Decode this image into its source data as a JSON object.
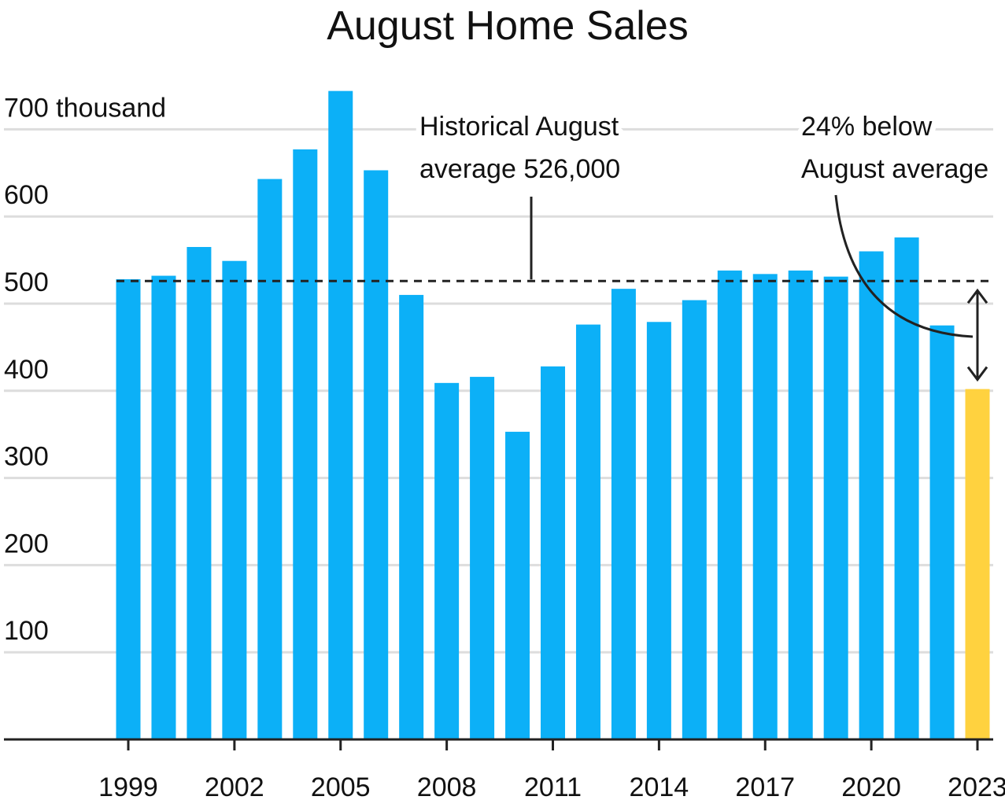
{
  "chart_data": {
    "type": "bar",
    "title": "August Home Sales",
    "categories": [
      "1999",
      null,
      null,
      "2002",
      null,
      null,
      "2005",
      null,
      null,
      "2008",
      null,
      null,
      "2011",
      null,
      null,
      "2014",
      null,
      null,
      "2017",
      null,
      null,
      "2020",
      null,
      null,
      "2023"
    ],
    "values": [
      528,
      532,
      565,
      549,
      643,
      677,
      744,
      653,
      510,
      409,
      416,
      353,
      428,
      476,
      517,
      479,
      504,
      538,
      534,
      538,
      531,
      560,
      576,
      475,
      402
    ],
    "colors": [
      "#0cb0f7",
      "#0cb0f7",
      "#0cb0f7",
      "#0cb0f7",
      "#0cb0f7",
      "#0cb0f7",
      "#0cb0f7",
      "#0cb0f7",
      "#0cb0f7",
      "#0cb0f7",
      "#0cb0f7",
      "#0cb0f7",
      "#0cb0f7",
      "#0cb0f7",
      "#0cb0f7",
      "#0cb0f7",
      "#0cb0f7",
      "#0cb0f7",
      "#0cb0f7",
      "#0cb0f7",
      "#0cb0f7",
      "#0cb0f7",
      "#0cb0f7",
      "#0cb0f7",
      "#ffd23f"
    ],
    "ylim": [
      0,
      750
    ],
    "yticks": [
      100,
      200,
      300,
      400,
      500,
      600,
      {
        "value": 700,
        "label": "700 thousand"
      }
    ],
    "grid": true,
    "average_line": 526,
    "annotations": [
      {
        "lines": [
          "Historical August",
          "average 526,000"
        ]
      },
      {
        "lines": [
          "24% below",
          "August average"
        ]
      }
    ]
  }
}
